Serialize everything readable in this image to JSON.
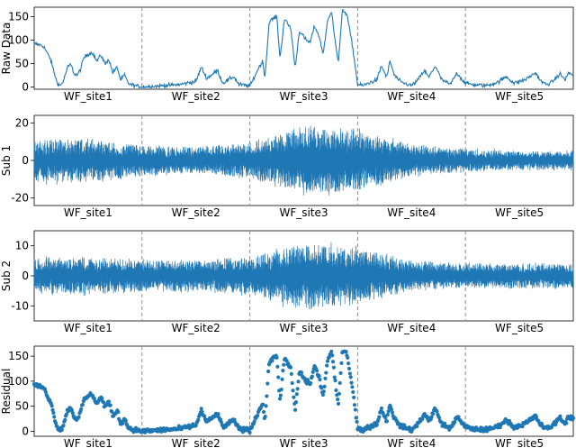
{
  "figure": {
    "sites": [
      "WF_site1",
      "WF_site2",
      "WF_site3",
      "WF_site4",
      "WF_site5"
    ],
    "line_color": "#1f77b4",
    "divider_color": "#8c8c8c"
  },
  "chart_data": [
    {
      "type": "line",
      "ylabel": "Raw Data",
      "ylim": [
        -5,
        170
      ],
      "yticks": [
        0,
        50,
        100,
        150
      ],
      "x_categories": [
        "WF_site1",
        "WF_site2",
        "WF_site3",
        "WF_site4",
        "WF_site5"
      ],
      "series": [
        {
          "kind": "piecewise",
          "knots": [
            [
              0,
              92
            ],
            [
              0.05,
              90
            ],
            [
              0.09,
              86
            ],
            [
              0.12,
              72
            ],
            [
              0.15,
              60
            ],
            [
              0.18,
              35
            ],
            [
              0.21,
              10
            ],
            [
              0.24,
              2
            ],
            [
              0.27,
              12
            ],
            [
              0.31,
              42
            ],
            [
              0.34,
              48
            ],
            [
              0.37,
              28
            ],
            [
              0.4,
              25
            ],
            [
              0.43,
              38
            ],
            [
              0.46,
              62
            ],
            [
              0.5,
              70
            ],
            [
              0.54,
              74
            ],
            [
              0.58,
              55
            ],
            [
              0.62,
              68
            ],
            [
              0.66,
              48
            ],
            [
              0.69,
              60
            ],
            [
              0.73,
              30
            ],
            [
              0.77,
              42
            ],
            [
              0.8,
              15
            ],
            [
              0.84,
              25
            ],
            [
              0.87,
              8
            ],
            [
              0.91,
              4
            ],
            [
              0.95,
              2
            ],
            [
              1.0,
              0
            ],
            [
              1.15,
              2
            ],
            [
              1.35,
              5
            ],
            [
              1.5,
              12
            ],
            [
              1.55,
              42
            ],
            [
              1.6,
              18
            ],
            [
              1.7,
              35
            ],
            [
              1.75,
              8
            ],
            [
              1.85,
              22
            ],
            [
              1.9,
              5
            ],
            [
              2.0,
              2
            ],
            [
              2.02,
              10
            ],
            [
              2.08,
              40
            ],
            [
              2.12,
              55
            ],
            [
              2.14,
              20
            ],
            [
              2.18,
              140
            ],
            [
              2.25,
              150
            ],
            [
              2.28,
              60
            ],
            [
              2.32,
              145
            ],
            [
              2.38,
              125
            ],
            [
              2.42,
              40
            ],
            [
              2.46,
              120
            ],
            [
              2.52,
              100
            ],
            [
              2.56,
              95
            ],
            [
              2.6,
              130
            ],
            [
              2.64,
              110
            ],
            [
              2.68,
              70
            ],
            [
              2.72,
              140
            ],
            [
              2.76,
              160
            ],
            [
              2.78,
              120
            ],
            [
              2.82,
              50
            ],
            [
              2.86,
              165
            ],
            [
              2.9,
              155
            ],
            [
              2.95,
              90
            ],
            [
              3.0,
              5
            ],
            [
              3.05,
              3
            ],
            [
              3.1,
              8
            ],
            [
              3.18,
              15
            ],
            [
              3.22,
              45
            ],
            [
              3.27,
              20
            ],
            [
              3.3,
              55
            ],
            [
              3.34,
              25
            ],
            [
              3.4,
              10
            ],
            [
              3.5,
              3
            ],
            [
              3.55,
              12
            ],
            [
              3.62,
              35
            ],
            [
              3.66,
              20
            ],
            [
              3.72,
              45
            ],
            [
              3.78,
              15
            ],
            [
              3.86,
              5
            ],
            [
              3.92,
              30
            ],
            [
              3.96,
              18
            ],
            [
              4.0,
              8
            ],
            [
              4.1,
              4
            ],
            [
              4.2,
              3
            ],
            [
              4.3,
              10
            ],
            [
              4.38,
              22
            ],
            [
              4.45,
              8
            ],
            [
              4.55,
              15
            ],
            [
              4.65,
              30
            ],
            [
              4.7,
              12
            ],
            [
              4.75,
              5
            ],
            [
              4.8,
              10
            ],
            [
              4.88,
              28
            ],
            [
              4.92,
              15
            ],
            [
              4.96,
              30
            ],
            [
              5.0,
              25
            ]
          ]
        }
      ]
    },
    {
      "type": "line",
      "ylabel": "Sub 1",
      "ylim": [
        -24,
        24
      ],
      "yticks": [
        -20,
        0,
        20
      ],
      "x_categories": [
        "WF_site1",
        "WF_site2",
        "WF_site3",
        "WF_site4",
        "WF_site5"
      ],
      "series": [
        {
          "kind": "oscillation",
          "envelope": [
            [
              0,
              11
            ],
            [
              0.5,
              11
            ],
            [
              1.0,
              8
            ],
            [
              1.5,
              7
            ],
            [
              2.0,
              9
            ],
            [
              2.5,
              18
            ],
            [
              3.0,
              16
            ],
            [
              3.5,
              8
            ],
            [
              4.0,
              6
            ],
            [
              4.5,
              5
            ],
            [
              5.0,
              5
            ]
          ]
        }
      ]
    },
    {
      "type": "line",
      "ylabel": "Sub 2",
      "ylim": [
        -15,
        15
      ],
      "yticks": [
        -10,
        0,
        10
      ],
      "x_categories": [
        "WF_site1",
        "WF_site2",
        "WF_site3",
        "WF_site4",
        "WF_site5"
      ],
      "series": [
        {
          "kind": "oscillation",
          "envelope": [
            [
              0,
              6
            ],
            [
              0.5,
              6
            ],
            [
              1.0,
              5
            ],
            [
              1.5,
              5
            ],
            [
              2.0,
              6
            ],
            [
              2.5,
              11
            ],
            [
              3.0,
              9
            ],
            [
              3.5,
              5
            ],
            [
              4.0,
              4
            ],
            [
              4.5,
              4
            ],
            [
              5.0,
              4
            ]
          ]
        }
      ]
    },
    {
      "type": "scatter",
      "ylabel": "Residual",
      "ylim": [
        -10,
        170
      ],
      "yticks": [
        0,
        50,
        100,
        150
      ],
      "x_categories": [
        "WF_site1",
        "WF_site2",
        "WF_site3",
        "WF_site4",
        "WF_site5"
      ],
      "series": [
        {
          "kind": "piecewise-scatter",
          "knots": [
            [
              0,
              92
            ],
            [
              0.05,
              90
            ],
            [
              0.09,
              86
            ],
            [
              0.12,
              72
            ],
            [
              0.15,
              60
            ],
            [
              0.18,
              35
            ],
            [
              0.21,
              10
            ],
            [
              0.24,
              2
            ],
            [
              0.27,
              12
            ],
            [
              0.31,
              42
            ],
            [
              0.34,
              48
            ],
            [
              0.37,
              28
            ],
            [
              0.4,
              25
            ],
            [
              0.43,
              38
            ],
            [
              0.46,
              62
            ],
            [
              0.5,
              70
            ],
            [
              0.54,
              74
            ],
            [
              0.58,
              55
            ],
            [
              0.62,
              68
            ],
            [
              0.66,
              48
            ],
            [
              0.69,
              60
            ],
            [
              0.73,
              30
            ],
            [
              0.77,
              42
            ],
            [
              0.8,
              15
            ],
            [
              0.84,
              25
            ],
            [
              0.87,
              8
            ],
            [
              0.91,
              4
            ],
            [
              0.95,
              2
            ],
            [
              1.0,
              0
            ],
            [
              1.15,
              2
            ],
            [
              1.35,
              5
            ],
            [
              1.5,
              12
            ],
            [
              1.55,
              42
            ],
            [
              1.6,
              18
            ],
            [
              1.7,
              35
            ],
            [
              1.75,
              8
            ],
            [
              1.85,
              22
            ],
            [
              1.9,
              5
            ],
            [
              2.0,
              2
            ],
            [
              2.02,
              10
            ],
            [
              2.08,
              40
            ],
            [
              2.12,
              55
            ],
            [
              2.14,
              20
            ],
            [
              2.18,
              140
            ],
            [
              2.25,
              150
            ],
            [
              2.28,
              60
            ],
            [
              2.32,
              145
            ],
            [
              2.38,
              125
            ],
            [
              2.42,
              40
            ],
            [
              2.46,
              120
            ],
            [
              2.52,
              100
            ],
            [
              2.56,
              95
            ],
            [
              2.6,
              130
            ],
            [
              2.64,
              110
            ],
            [
              2.68,
              70
            ],
            [
              2.72,
              140
            ],
            [
              2.76,
              160
            ],
            [
              2.78,
              120
            ],
            [
              2.82,
              50
            ],
            [
              2.86,
              165
            ],
            [
              2.9,
              155
            ],
            [
              2.95,
              90
            ],
            [
              3.0,
              5
            ],
            [
              3.05,
              3
            ],
            [
              3.1,
              8
            ],
            [
              3.18,
              15
            ],
            [
              3.22,
              45
            ],
            [
              3.27,
              20
            ],
            [
              3.3,
              55
            ],
            [
              3.34,
              25
            ],
            [
              3.4,
              10
            ],
            [
              3.5,
              3
            ],
            [
              3.55,
              12
            ],
            [
              3.62,
              35
            ],
            [
              3.66,
              20
            ],
            [
              3.72,
              45
            ],
            [
              3.78,
              15
            ],
            [
              3.86,
              5
            ],
            [
              3.92,
              30
            ],
            [
              3.96,
              18
            ],
            [
              4.0,
              8
            ],
            [
              4.1,
              4
            ],
            [
              4.2,
              3
            ],
            [
              4.3,
              10
            ],
            [
              4.38,
              22
            ],
            [
              4.45,
              8
            ],
            [
              4.55,
              15
            ],
            [
              4.65,
              30
            ],
            [
              4.7,
              12
            ],
            [
              4.75,
              5
            ],
            [
              4.8,
              10
            ],
            [
              4.88,
              28
            ],
            [
              4.92,
              15
            ],
            [
              4.96,
              30
            ],
            [
              5.0,
              25
            ]
          ]
        }
      ]
    }
  ]
}
